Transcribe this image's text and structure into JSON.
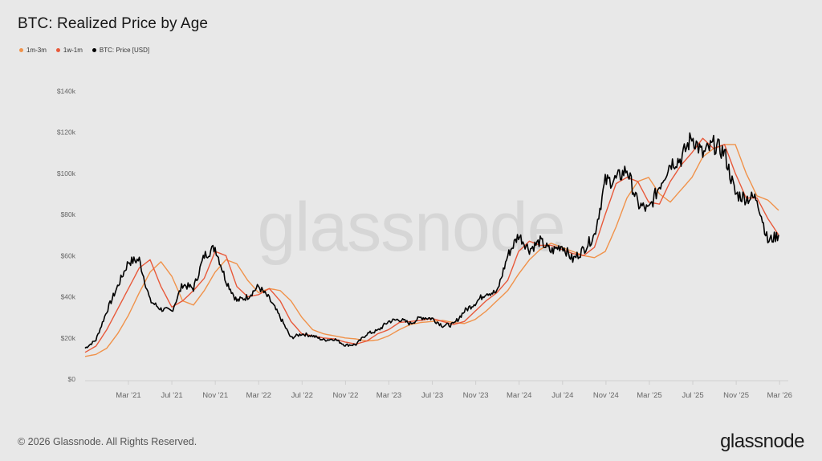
{
  "header": {
    "title": "BTC: Realized Price by Age"
  },
  "legend": [
    {
      "label": "1m-3m",
      "color": "#f0924a"
    },
    {
      "label": "1w-1m",
      "color": "#e8593a"
    },
    {
      "label": "BTC: Price [USD]",
      "color": "#000000"
    }
  ],
  "watermark": "glassnode",
  "footer": {
    "copyright": "© 2026 Glassnode. All Rights Reserved.",
    "logo": "glassnode"
  },
  "chart_data": {
    "type": "line",
    "title": "BTC: Realized Price by Age",
    "xlabel": "",
    "ylabel": "",
    "ylim": [
      0,
      140000
    ],
    "yticks": [
      "$0",
      "$20k",
      "$40k",
      "$60k",
      "$80k",
      "$100k",
      "$120k",
      "$140k"
    ],
    "xticks": [
      "Mar '21",
      "Jul '21",
      "Nov '21",
      "Mar '22",
      "Jul '22",
      "Nov '22",
      "Mar '23",
      "Jul '23",
      "Nov '23",
      "Mar '24",
      "Jul '24",
      "Nov '24",
      "Mar '25",
      "Jul '25",
      "Nov '25",
      "Mar '26"
    ],
    "grid": false,
    "legend_position": "top-left",
    "x": [
      "2020-11",
      "2020-12",
      "2021-01",
      "2021-02",
      "2021-03",
      "2021-04",
      "2021-05",
      "2021-06",
      "2021-07",
      "2021-08",
      "2021-09",
      "2021-10",
      "2021-11",
      "2021-12",
      "2022-01",
      "2022-02",
      "2022-03",
      "2022-04",
      "2022-05",
      "2022-06",
      "2022-07",
      "2022-08",
      "2022-09",
      "2022-10",
      "2022-11",
      "2022-12",
      "2023-01",
      "2023-02",
      "2023-03",
      "2023-04",
      "2023-05",
      "2023-06",
      "2023-07",
      "2023-08",
      "2023-09",
      "2023-10",
      "2023-11",
      "2023-12",
      "2024-01",
      "2024-02",
      "2024-03",
      "2024-04",
      "2024-05",
      "2024-06",
      "2024-07",
      "2024-08",
      "2024-09",
      "2024-10",
      "2024-11",
      "2024-12",
      "2025-01",
      "2025-02",
      "2025-03",
      "2025-04",
      "2025-05",
      "2025-06",
      "2025-07",
      "2025-08",
      "2025-09",
      "2025-10",
      "2025-11",
      "2025-12",
      "2026-01",
      "2026-02",
      "2026-03"
    ],
    "series": [
      {
        "name": "1m-3m",
        "color": "#f0924a",
        "values": [
          11,
          12,
          15,
          22,
          31,
          42,
          52,
          57,
          50,
          38,
          36,
          43,
          52,
          58,
          56,
          48,
          42,
          44,
          43,
          38,
          30,
          24,
          22,
          21,
          20,
          19.5,
          18.5,
          19,
          21,
          24,
          26.5,
          27.5,
          28,
          28.5,
          27.5,
          27,
          29,
          33,
          38,
          43,
          51,
          58,
          63,
          66,
          64,
          62,
          60,
          59,
          62,
          74,
          88,
          96,
          98,
          90,
          86,
          92,
          98,
          108,
          112,
          114,
          114,
          100,
          89,
          87,
          82
        ]
      },
      {
        "name": "1w-1m",
        "color": "#e8593a",
        "values": [
          13,
          16,
          24,
          34,
          44,
          54,
          58,
          45,
          35,
          38,
          43,
          49,
          62,
          60,
          45,
          40,
          41,
          44,
          38,
          28,
          22,
          21,
          20,
          19.5,
          18,
          17,
          18.5,
          22,
          24,
          27.5,
          28,
          28.5,
          29.5,
          28,
          26.5,
          28,
          33,
          38,
          42,
          48,
          62,
          67,
          65,
          65,
          63,
          61,
          60,
          64,
          80,
          95,
          98,
          96,
          86,
          85,
          96,
          104,
          110,
          117,
          112,
          114,
          100,
          88,
          88,
          78,
          70
        ]
      },
      {
        "name": "BTC: Price [USD]",
        "color": "#000000",
        "values": [
          15,
          19,
          33,
          45,
          57,
          58,
          38,
          34,
          33,
          46,
          44,
          60,
          64,
          48,
          38,
          40,
          45,
          39,
          30,
          20,
          22,
          21,
          19,
          19.5,
          16.5,
          16.8,
          22,
          23.5,
          28,
          29,
          27,
          30,
          29.5,
          26,
          26.5,
          33,
          37,
          42,
          42,
          60,
          70,
          63,
          67,
          62,
          65,
          58,
          63,
          70,
          96,
          97,
          102,
          85,
          82,
          94,
          105,
          107,
          118,
          109,
          114,
          110,
          90,
          88,
          88,
          67,
          70
        ]
      }
    ]
  }
}
